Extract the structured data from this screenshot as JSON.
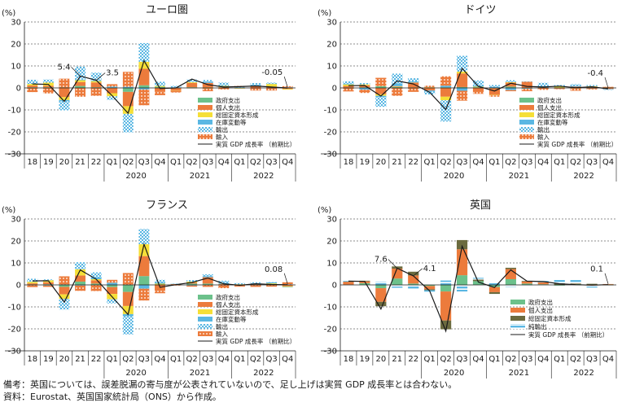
{
  "legend_labels": {
    "gov": "政府支出",
    "cons": "個人支出",
    "inv": "総固定資本形成",
    "stock": "在庫変動等",
    "exp": "輸出",
    "imp": "輸入",
    "net": "純輸出",
    "gdp": "実質 GDP 成長率 （前期比）"
  },
  "colors": {
    "gov": "#6cc18b",
    "cons": "#ec7b3c",
    "inv": "#f5df38",
    "inv_uk": "#6b6b3f",
    "stock": "#5ab7e3",
    "exp": "#5ab7e3",
    "imp": "#ec7b3c",
    "line": "#1a1a1a",
    "grid": "#1a1a1a"
  },
  "notes": [
    "備考：英国については、誤差脱漏の寄与度が公表されていないので、足し上げは実質 GDP 成長率とは合わない。",
    "資料：Eurostat、英国国家統計局（ONS）から作成。"
  ],
  "chart_data": [
    {
      "type": "bar",
      "title": "ユーロ圏",
      "yunit": "(%)",
      "ylim": [
        -30,
        30
      ],
      "yticks": [
        30,
        20,
        10,
        0,
        -10,
        -20,
        -30
      ],
      "categories": [
        "18",
        "19",
        "20",
        "21",
        "22",
        "Q1",
        "Q2",
        "Q3",
        "Q4",
        "Q1",
        "Q2",
        "Q3",
        "Q4",
        "Q1",
        "Q2",
        "Q3",
        "Q4"
      ],
      "year_groups": [
        {
          "label": "2020",
          "from": 5,
          "to": 8
        },
        {
          "label": "2021",
          "from": 9,
          "to": 12
        },
        {
          "label": "2022",
          "from": 13,
          "to": 16
        }
      ],
      "series": [
        {
          "name": "政府支出",
          "key": "gov",
          "values": [
            0.3,
            0.3,
            0.2,
            0.9,
            0.3,
            0.2,
            -1.8,
            1.2,
            0.5,
            0.1,
            0.3,
            0.2,
            0.1,
            0.0,
            0.0,
            0.1,
            0.1
          ]
        },
        {
          "name": "個人支出",
          "key": "cons",
          "values": [
            0.8,
            0.7,
            -4.2,
            1.8,
            2.2,
            -2.4,
            -6.5,
            7.5,
            -1.6,
            -1.2,
            2.0,
            2.1,
            0.2,
            -0.1,
            0.8,
            0.5,
            -0.5
          ]
        },
        {
          "name": "総固定資本形成",
          "key": "inv",
          "values": [
            0.7,
            1.4,
            -1.3,
            0.8,
            0.6,
            -1.4,
            -3.5,
            3.2,
            0.4,
            -0.1,
            0.3,
            -0.2,
            0.6,
            -0.2,
            0.1,
            1.2,
            -0.3
          ]
        },
        {
          "name": "在庫変動等",
          "key": "stock",
          "values": [
            0.0,
            0.0,
            -0.6,
            0.3,
            0.3,
            0.4,
            0.5,
            -0.7,
            0.1,
            0.2,
            0.0,
            0.5,
            0.2,
            0.3,
            0.5,
            0.1,
            0.2
          ]
        },
        {
          "name": "輸出",
          "key": "exp",
          "values": [
            1.9,
            1.4,
            -4.1,
            5.9,
            3.5,
            -1.6,
            -8.4,
            8.5,
            1.8,
            0.6,
            1.2,
            0.8,
            1.3,
            0.2,
            0.8,
            0.5,
            0.0
          ]
        },
        {
          "name": "輸入",
          "key": "imp",
          "values": [
            -1.9,
            -2.5,
            4.0,
            -4.0,
            -3.6,
            1.1,
            6.8,
            -7.2,
            -1.7,
            -0.8,
            -0.2,
            -1.3,
            -0.7,
            0.4,
            -1.2,
            -1.2,
            0.5
          ]
        }
      ],
      "line": {
        "name": "実質 GDP 成長率 （前期比）",
        "values": [
          1.8,
          1.6,
          -6.1,
          5.4,
          3.5,
          -3.5,
          -11.5,
          12.4,
          -0.3,
          0.0,
          4.0,
          1.5,
          0.4,
          0.6,
          0.9,
          0.4,
          -0.05
        ]
      },
      "annotations": [
        {
          "text": "5.4",
          "index": 3
        },
        {
          "text": "3.5",
          "index": 4
        },
        {
          "text": "-0.05",
          "index": 16
        }
      ]
    },
    {
      "type": "bar",
      "title": "ドイツ",
      "yunit": "(%)",
      "ylim": [
        -30,
        30
      ],
      "yticks": [
        30,
        20,
        10,
        0,
        -10,
        -20,
        -30
      ],
      "categories": [
        "18",
        "19",
        "20",
        "21",
        "22",
        "Q1",
        "Q2",
        "Q3",
        "Q4",
        "Q1",
        "Q2",
        "Q3",
        "Q4",
        "Q1",
        "Q2",
        "Q3",
        "Q4"
      ],
      "year_groups": [
        {
          "label": "2020",
          "from": 5,
          "to": 8
        },
        {
          "label": "2021",
          "from": 9,
          "to": 12
        },
        {
          "label": "2022",
          "from": 13,
          "to": 16
        }
      ],
      "series": [
        {
          "name": "政府支出",
          "key": "gov",
          "values": [
            0.2,
            0.3,
            0.8,
            0.4,
            0.2,
            0.1,
            0.3,
            0.4,
            0.3,
            -0.2,
            0.6,
            -0.1,
            0.0,
            0.2,
            0.0,
            0.1,
            0.1
          ]
        },
        {
          "name": "個人支出",
          "key": "cons",
          "values": [
            0.7,
            0.9,
            -2.9,
            0.2,
            2.2,
            -1.2,
            -4.0,
            6.2,
            -1.5,
            -3.0,
            1.8,
            2.8,
            0.1,
            -0.1,
            0.6,
            0.5,
            -0.5
          ]
        },
        {
          "name": "総固定資本形成",
          "key": "inv",
          "values": [
            0.7,
            0.4,
            -0.7,
            0.2,
            0.1,
            0.2,
            -1.6,
            0.8,
            0.3,
            -0.2,
            0.2,
            -0.1,
            0.1,
            0.5,
            -0.2,
            0.2,
            0.1
          ]
        },
        {
          "name": "在庫変動等",
          "key": "stock",
          "values": [
            0.3,
            -0.8,
            -0.6,
            1.2,
            0.5,
            -0.5,
            0.7,
            -1.3,
            0.5,
            0.4,
            -1.0,
            -0.2,
            0.6,
            -0.1,
            0.4,
            -0.2,
            -0.1
          ]
        },
        {
          "name": "輸出",
          "key": "exp",
          "values": [
            1.1,
            0.6,
            -4.4,
            4.5,
            1.4,
            -1.3,
            -9.7,
            7.2,
            2.3,
            0.9,
            0.9,
            0.2,
            1.5,
            0.6,
            0.7,
            0.5,
            -0.3
          ]
        },
        {
          "name": "輸入",
          "key": "imp",
          "values": [
            -1.6,
            -1.5,
            3.8,
            -3.6,
            -1.8,
            0.7,
            4.3,
            -4.5,
            -1.2,
            -0.6,
            -0.5,
            -1.1,
            -0.9,
            -0.4,
            -1.1,
            -0.5,
            0.3
          ]
        }
      ],
      "line": {
        "name": "実質 GDP 成長率 （前期比）",
        "values": [
          1.0,
          1.1,
          -3.7,
          3.2,
          1.8,
          -2.0,
          -9.8,
          8.9,
          0.7,
          -1.4,
          2.1,
          0.7,
          0.4,
          0.8,
          0.1,
          0.5,
          -0.4
        ]
      },
      "annotations": [
        {
          "text": "-0.4",
          "index": 16
        }
      ]
    },
    {
      "type": "bar",
      "title": "フランス",
      "yunit": "(%)",
      "ylim": [
        -30,
        30
      ],
      "yticks": [
        30,
        20,
        10,
        0,
        -10,
        -20,
        -30
      ],
      "categories": [
        "18",
        "19",
        "20",
        "21",
        "22",
        "Q1",
        "Q2",
        "Q3",
        "Q4",
        "Q1",
        "Q2",
        "Q3",
        "Q4",
        "Q1",
        "Q2",
        "Q3",
        "Q4"
      ],
      "year_groups": [
        {
          "label": "2020",
          "from": 5,
          "to": 8
        },
        {
          "label": "2021",
          "from": 9,
          "to": 12
        },
        {
          "label": "2022",
          "from": 13,
          "to": 16
        }
      ],
      "series": [
        {
          "name": "政府支出",
          "key": "gov",
          "values": [
            0.2,
            0.3,
            -0.9,
            1.5,
            0.6,
            -1.0,
            -3.2,
            4.0,
            0.2,
            0.2,
            0.6,
            0.6,
            0.1,
            0.1,
            0.1,
            0.1,
            0.0
          ]
        },
        {
          "name": "個人支出",
          "key": "cons",
          "values": [
            0.5,
            0.9,
            -3.4,
            2.8,
            1.5,
            -3.1,
            -6.4,
            9.1,
            -2.7,
            0.2,
            0.5,
            2.9,
            0.3,
            -0.7,
            0.1,
            0.1,
            -0.6
          ]
        },
        {
          "name": "総固定資本形成",
          "key": "inv",
          "values": [
            0.7,
            0.9,
            -2.0,
            2.8,
            0.5,
            -2.4,
            -3.7,
            5.4,
            0.4,
            0.0,
            0.4,
            0.0,
            0.1,
            0.2,
            0.1,
            0.5,
            -0.3
          ]
        },
        {
          "name": "在庫変動等",
          "key": "stock",
          "values": [
            -0.1,
            -0.3,
            0.2,
            -0.3,
            0.9,
            1.0,
            -1.0,
            -1.7,
            0.5,
            0.1,
            -0.3,
            0.5,
            0.5,
            0.0,
            0.0,
            0.5,
            -0.2
          ]
        },
        {
          "name": "輸出",
          "key": "exp",
          "values": [
            1.4,
            0.4,
            -4.9,
            3.2,
            2.2,
            -1.9,
            -8.2,
            6.9,
            1.2,
            0.1,
            0.7,
            0.8,
            0.9,
            0.5,
            0.9,
            0.1,
            0.3
          ]
        },
        {
          "name": "輸入",
          "key": "imp",
          "values": [
            -0.9,
            -0.6,
            3.7,
            -2.4,
            -2.8,
            1.3,
            5.4,
            -5.4,
            -1.1,
            -0.3,
            -0.5,
            -0.9,
            -1.5,
            -0.1,
            -0.9,
            -0.8,
            0.9
          ]
        }
      ],
      "line": {
        "name": "実質 GDP 成長率 （前期比）",
        "values": [
          1.8,
          1.9,
          -7.8,
          6.8,
          2.6,
          -5.4,
          -13.5,
          18.5,
          -1.1,
          0.1,
          1.1,
          3.1,
          0.5,
          -0.2,
          0.5,
          0.2,
          0.08
        ]
      },
      "annotations": [
        {
          "text": "0.08",
          "index": 16
        }
      ]
    },
    {
      "type": "bar",
      "title": "英国",
      "yunit": "(%)",
      "ylim": [
        -30,
        30
      ],
      "yticks": [
        30,
        20,
        10,
        0,
        -10,
        -20,
        -30
      ],
      "categories": [
        "18",
        "19",
        "20",
        "21",
        "22",
        "Q1",
        "Q2",
        "Q3",
        "Q4",
        "Q1",
        "Q2",
        "Q3",
        "Q4",
        "Q1",
        "Q2",
        "Q3",
        "Q4"
      ],
      "year_groups": [
        {
          "label": "2020",
          "from": 5,
          "to": 8
        },
        {
          "label": "2021",
          "from": 9,
          "to": 12
        },
        {
          "label": "2022",
          "from": 13,
          "to": 16
        }
      ],
      "series": [
        {
          "name": "政府支出",
          "key": "gov",
          "values": [
            0.1,
            0.8,
            -1.5,
            2.9,
            0.6,
            -0.5,
            -3.0,
            4.4,
            1.7,
            -1.0,
            2.6,
            0.6,
            0.3,
            -0.3,
            0.4,
            0.1,
            0.2
          ]
        },
        {
          "name": "個人支出",
          "key": "cons",
          "values": [
            1.3,
            0.8,
            -6.2,
            4.5,
            3.7,
            -1.5,
            -13.2,
            11.8,
            0.0,
            -2.3,
            4.6,
            0.9,
            0.8,
            0.0,
            0.1,
            -0.3,
            0.2
          ]
        },
        {
          "name": "総固定資本形成",
          "key": "inv",
          "values": [
            0.1,
            0.3,
            -2.0,
            1.0,
            1.7,
            -0.4,
            -4.0,
            4.2,
            0.7,
            -0.8,
            0.6,
            0.3,
            0.1,
            0.7,
            0.2,
            0.4,
            -0.2
          ]
        },
        {
          "name": "純輸出",
          "key": "net",
          "values": [
            0.3,
            0.0,
            1.5,
            -1.3,
            -2.0,
            -0.7,
            2.0,
            -3.0,
            0.8,
            0.9,
            -0.9,
            -0.5,
            0.6,
            2.0,
            1.5,
            -0.9,
            -0.4
          ]
        }
      ],
      "line": {
        "name": "実質 GDP 成長率 （前期比）",
        "values": [
          1.7,
          1.6,
          -11.0,
          7.6,
          4.1,
          -2.7,
          -21.0,
          17.6,
          1.3,
          -1.2,
          6.8,
          1.7,
          1.5,
          0.5,
          0.1,
          -0.1,
          0.1
        ]
      },
      "annotations": [
        {
          "text": "7.6",
          "index": 3
        },
        {
          "text": "4.1",
          "index": 4
        },
        {
          "text": "0.1",
          "index": 16
        }
      ]
    }
  ]
}
